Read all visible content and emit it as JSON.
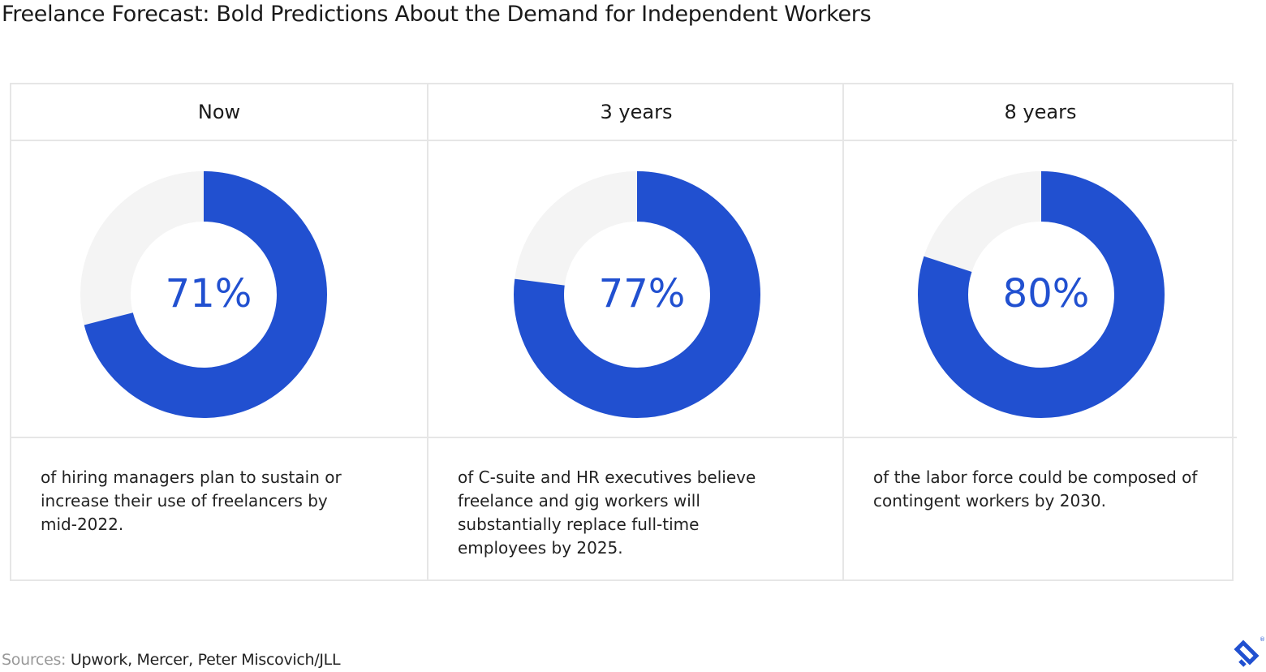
{
  "title": "Freelance Forecast: Bold Predictions About the Demand for Independent Workers",
  "chart_data": [
    {
      "type": "donut",
      "title": "Now",
      "values": [
        71
      ],
      "value_labels": [
        "71%"
      ],
      "range": [
        0,
        100
      ],
      "color": "#2150d0",
      "track_color": "#f4f4f4",
      "description": "of hiring managers plan to sustain or increase their use of freelancers by mid-2022."
    },
    {
      "type": "donut",
      "title": "3 years",
      "values": [
        77
      ],
      "value_labels": [
        "77%"
      ],
      "range": [
        0,
        100
      ],
      "color": "#2150d0",
      "track_color": "#f4f4f4",
      "description": "of C-suite and HR executives believe freelance and gig workers will substantially replace full-time employees by 2025."
    },
    {
      "type": "donut",
      "title": "8 years",
      "values": [
        80
      ],
      "value_labels": [
        "80%"
      ],
      "range": [
        0,
        100
      ],
      "color": "#2150d0",
      "track_color": "#f4f4f4",
      "description": "of the labor force could be composed of contingent workers by 2030."
    }
  ],
  "sources": {
    "label": "Sources:",
    "text": "Upwork, Mercer, Peter Miscovich/JLL"
  }
}
